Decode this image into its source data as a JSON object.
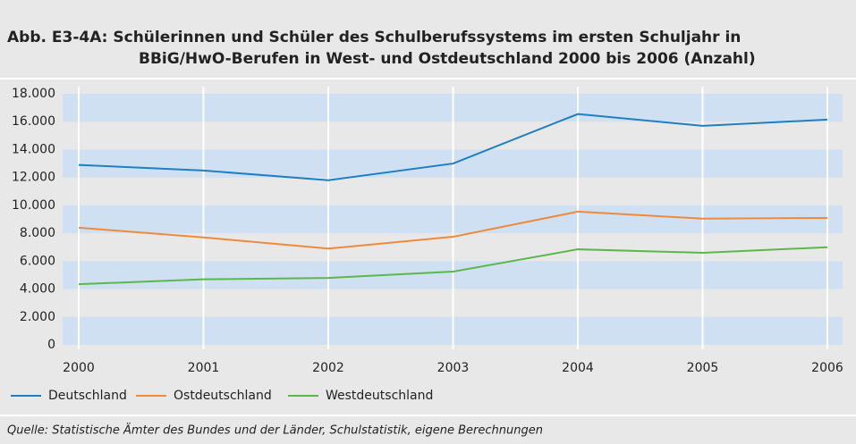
{
  "chart_data": {
    "type": "line",
    "title": [
      "Abb. E3-4A: Schülerinnen und Schüler des Schulberufssystems im ersten Schuljahr in",
      "BBiG/HwO-Berufen in West- und Ostdeutschland 2000 bis 2006 (Anzahl)"
    ],
    "categories": [
      "2000",
      "2001",
      "2002",
      "2003",
      "2004",
      "2005",
      "2006"
    ],
    "series": [
      {
        "name": "Deutschland",
        "color": "#1f7fc1",
        "values": [
          12900,
          12500,
          11800,
          13000,
          16550,
          15700,
          16150
        ]
      },
      {
        "name": "Ostdeutschland",
        "color": "#ef8a3c",
        "values": [
          8400,
          7700,
          6900,
          7750,
          9550,
          9050,
          9100
        ]
      },
      {
        "name": "Westdeutschland",
        "color": "#5cb84a",
        "values": [
          4350,
          4700,
          4800,
          5250,
          6850,
          6600,
          7000
        ]
      }
    ],
    "ylim": [
      0,
      18000
    ],
    "yticks": [
      0,
      {
        "value": 2000,
        "label": "2.000"
      },
      {
        "value": 4000,
        "label": "4.000"
      },
      {
        "value": 6000,
        "label": "6.000"
      },
      {
        "value": 8000,
        "label": "8.000"
      },
      {
        "value": 10000,
        "label": "10.000"
      },
      {
        "value": 12000,
        "label": "12.000"
      },
      {
        "value": 14000,
        "label": "14.000"
      },
      {
        "value": 16000,
        "label": "16.000"
      },
      {
        "value": 18000,
        "label": "18.000"
      }
    ],
    "grid": true,
    "legend": "bottom",
    "source": "Quelle: Statistische Ämter des Bundes und der Länder, Schulstatistik, eigene Berechnungen"
  }
}
